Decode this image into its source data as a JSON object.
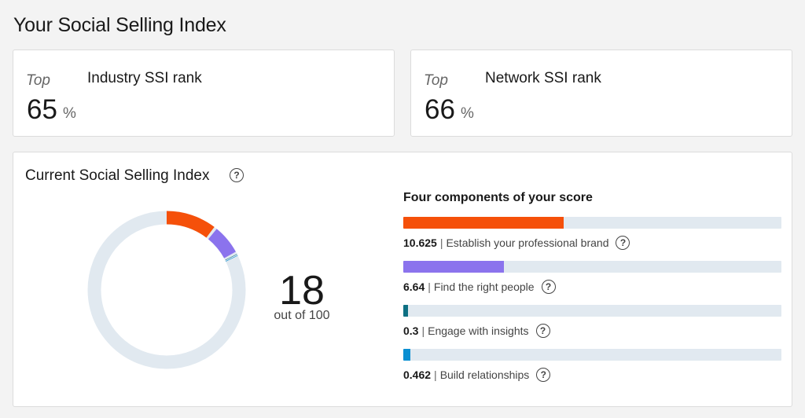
{
  "page": {
    "title": "Your Social Selling Index"
  },
  "ranks": [
    {
      "top_label": "Top",
      "value": "65",
      "unit": "%",
      "label": "Industry SSI rank"
    },
    {
      "top_label": "Top",
      "value": "66",
      "unit": "%",
      "label": "Network SSI rank"
    }
  ],
  "ssi": {
    "title": "Current Social Selling Index",
    "score": "18",
    "score_suffix": "out of 100",
    "max": 100,
    "components_title": "Four components of your score",
    "components": [
      {
        "score": "10.625",
        "value": 10.625,
        "max": 25,
        "label": "Establish your professional brand",
        "color": "#f5500a"
      },
      {
        "score": "6.64",
        "value": 6.64,
        "max": 25,
        "label": "Find the right people",
        "color": "#8b73ed"
      },
      {
        "score": "0.3",
        "value": 0.3,
        "max": 25,
        "label": "Engage with insights",
        "color": "#0e7083"
      },
      {
        "score": "0.462",
        "value": 0.462,
        "max": 25,
        "label": "Build relationships",
        "color": "#0a8fd2"
      }
    ]
  },
  "colors": {
    "track": "#e1e9f0",
    "background": "#f3f3f3",
    "card": "#ffffff"
  },
  "icons": {
    "help": "question-circle-icon"
  },
  "help_glyph": "?"
}
